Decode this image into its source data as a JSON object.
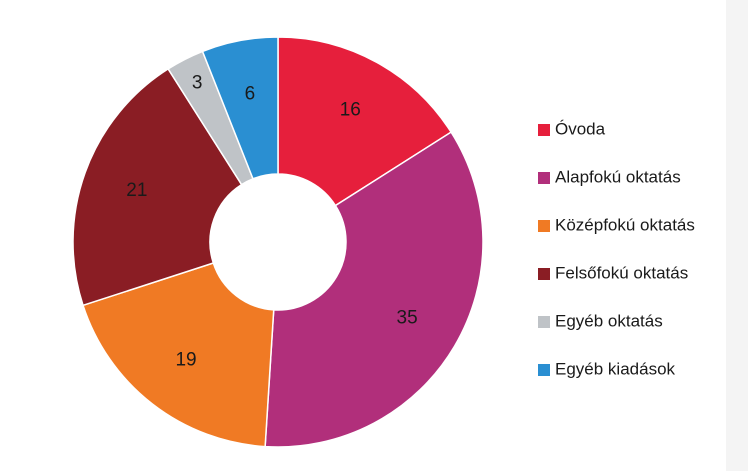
{
  "chart_data": {
    "type": "donut",
    "categories": [
      "Óvoda",
      "Alapfokú oktatás",
      "Középfokú oktatás",
      "Felsőfokú oktatás",
      "Egyéb oktatás",
      "Egyéb kiadások"
    ],
    "values": [
      16,
      35,
      19,
      21,
      3,
      6
    ],
    "colors": [
      "#e61f3c",
      "#b12f7b",
      "#f07a24",
      "#8a1d24",
      "#bfc3c7",
      "#2a8fd2"
    ],
    "legend": "right"
  }
}
